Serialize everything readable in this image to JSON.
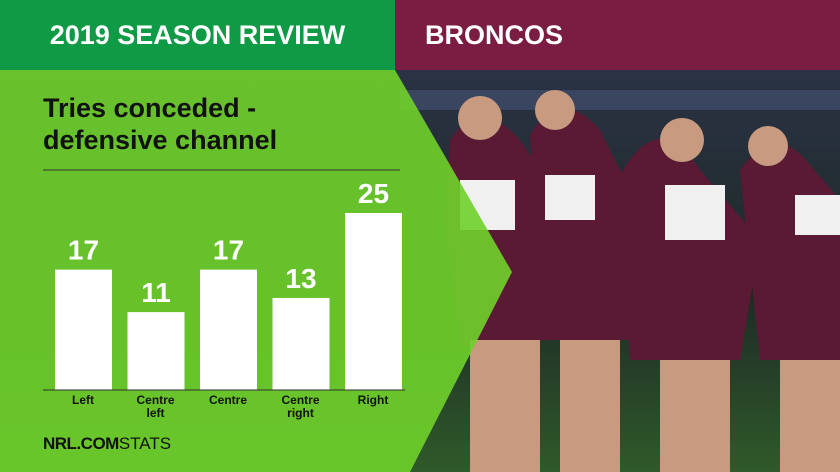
{
  "header": {
    "left": "2019 SEASON REVIEW",
    "right": "BRONCOS"
  },
  "chart_data": {
    "type": "bar",
    "title": "Tries conceded - defensive channel",
    "categories": [
      "Left",
      "Centre left",
      "Centre",
      "Centre right",
      "Right"
    ],
    "values": [
      17,
      11,
      17,
      13,
      25
    ],
    "color": "#ffffff"
  },
  "footer": {
    "brand": "NRL.COM",
    "suffix": "STATS"
  }
}
